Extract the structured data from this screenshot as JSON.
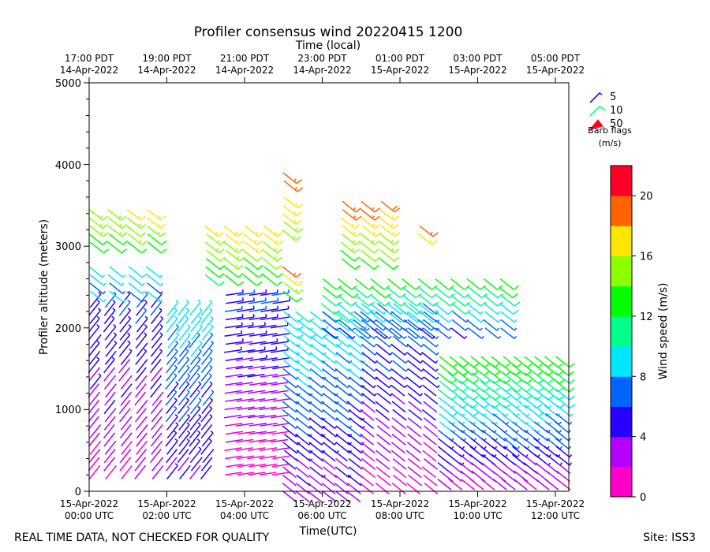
{
  "chart_data": {
    "type": "wind-barb-profile",
    "title": "Profiler consensus wind 20220415 1200",
    "top_axis_label": "Time (local)",
    "xlabel": "Time(UTC)",
    "ylabel": "Profiler altitude (meters)",
    "xlim_hours_utc": [
      0,
      12.35
    ],
    "ylim": [
      0,
      5000
    ],
    "y_ticks": [
      "0",
      "1000",
      "2000",
      "3000",
      "4000",
      "5000"
    ],
    "bottom_ticks": [
      {
        "hour": 0,
        "line1": "15-Apr-2022",
        "line2": "00:00 UTC"
      },
      {
        "hour": 2,
        "line1": "15-Apr-2022",
        "line2": "02:00 UTC"
      },
      {
        "hour": 4,
        "line1": "15-Apr-2022",
        "line2": "04:00 UTC"
      },
      {
        "hour": 6,
        "line1": "15-Apr-2022",
        "line2": "06:00 UTC"
      },
      {
        "hour": 8,
        "line1": "15-Apr-2022",
        "line2": "08:00 UTC"
      },
      {
        "hour": 10,
        "line1": "15-Apr-2022",
        "line2": "10:00 UTC"
      },
      {
        "hour": 12,
        "line1": "15-Apr-2022",
        "line2": "12:00 UTC"
      }
    ],
    "top_ticks": [
      {
        "hour": 0,
        "line1": "17:00 PDT",
        "line2": "14-Apr-2022"
      },
      {
        "hour": 2,
        "line1": "19:00 PDT",
        "line2": "14-Apr-2022"
      },
      {
        "hour": 4,
        "line1": "21:00 PDT",
        "line2": "14-Apr-2022"
      },
      {
        "hour": 6,
        "line1": "23:00 PDT",
        "line2": "14-Apr-2022"
      },
      {
        "hour": 8,
        "line1": "01:00 PDT",
        "line2": "15-Apr-2022"
      },
      {
        "hour": 10,
        "line1": "03:00 PDT",
        "line2": "15-Apr-2022"
      },
      {
        "hour": 12,
        "line1": "05:00 PDT",
        "line2": "15-Apr-2022"
      }
    ],
    "colorbar": {
      "label": "Wind speed (m/s)",
      "range": [
        0,
        22
      ],
      "tick_labels": [
        "0",
        "4",
        "8",
        "12",
        "16",
        "20"
      ],
      "colors": [
        "#ff00c8",
        "#b400ff",
        "#2800ff",
        "#0064ff",
        "#00e6ff",
        "#00ff8c",
        "#00ff00",
        "#8cff00",
        "#ffe600",
        "#ff6400",
        "#ff0028"
      ]
    },
    "legend": {
      "entries": [
        {
          "label": "5",
          "color": "#2800ff"
        },
        {
          "label": "10",
          "color": "#00ff8c"
        },
        {
          "label": "50",
          "color": "#ff0028"
        }
      ],
      "title_line1": "Barb flags",
      "title_line2": "(m/s)"
    },
    "barb_rows": [
      {
        "hour_start": 0.0,
        "hour_end": 2.0,
        "alt_min": 150,
        "alt_max": 2300,
        "step": 100,
        "speed_low": 2,
        "speed_high": 6,
        "direction": "sw",
        "columns": 5
      },
      {
        "hour_start": 2.0,
        "hour_end": 3.2,
        "alt_min": 150,
        "alt_max": 2200,
        "step": 100,
        "speed_low": 4,
        "speed_high": 9,
        "direction": "sw",
        "columns": 4
      },
      {
        "hour_start": 3.5,
        "hour_end": 5.0,
        "alt_min": 200,
        "alt_max": 2400,
        "step": 100,
        "speed_low": 1,
        "speed_high": 6,
        "direction": "w",
        "columns": 5
      },
      {
        "hour_start": 5.0,
        "hour_end": 7.0,
        "alt_min": 0,
        "alt_max": 2200,
        "step": 100,
        "speed_low": 3,
        "speed_high": 10,
        "direction": "nw",
        "columns": 6
      },
      {
        "hour_start": 7.0,
        "hour_end": 9.0,
        "alt_min": 100,
        "alt_max": 2300,
        "step": 100,
        "speed_low": 1,
        "speed_high": 8,
        "direction": "nw",
        "columns": 5
      },
      {
        "hour_start": 9.0,
        "hour_end": 12.3,
        "alt_min": 150,
        "alt_max": 1700,
        "step": 100,
        "speed_low": 2,
        "speed_high": 14,
        "direction": "nw",
        "columns": 12
      },
      {
        "hour_start": 0.0,
        "hour_end": 2.0,
        "alt_min": 2450,
        "alt_max": 2800,
        "step": 100,
        "speed_low": 8,
        "speed_high": 9,
        "direction": "nw",
        "columns": 4
      },
      {
        "hour_start": 6.0,
        "hour_end": 11.0,
        "alt_min": 2000,
        "alt_max": 2600,
        "step": 100,
        "speed_low": 6,
        "speed_high": 13,
        "direction": "nw",
        "columns": 12
      },
      {
        "hour_start": 0.0,
        "hour_end": 2.0,
        "alt_min": 3050,
        "alt_max": 3500,
        "step": 100,
        "speed_low": 13,
        "speed_high": 17,
        "direction": "nw",
        "columns": 4
      },
      {
        "hour_start": 3.0,
        "hour_end": 5.0,
        "alt_min": 2650,
        "alt_max": 3300,
        "step": 100,
        "speed_low": 12,
        "speed_high": 18,
        "direction": "nw",
        "columns": 4
      },
      {
        "hour_start": 5.0,
        "hour_end": 6.0,
        "alt_min": 2450,
        "alt_max": 2750,
        "step": 100,
        "speed_low": 13,
        "speed_high": 19,
        "direction": "nw",
        "columns": 1
      },
      {
        "hour_start": 5.0,
        "hour_end": 6.0,
        "alt_min": 3200,
        "alt_max": 3600,
        "step": 100,
        "speed_low": 15,
        "speed_high": 17,
        "direction": "nw",
        "columns": 1
      },
      {
        "hour_start": 6.5,
        "hour_end": 8.0,
        "alt_min": 2850,
        "alt_max": 3550,
        "step": 100,
        "speed_low": 13,
        "speed_high": 19,
        "direction": "nw",
        "columns": 3
      },
      {
        "hour_start": 8.5,
        "hour_end": 9.0,
        "alt_min": 3150,
        "alt_max": 3300,
        "step": 100,
        "speed_low": 17,
        "speed_high": 19,
        "direction": "nw",
        "columns": 1
      },
      {
        "hour_start": 5.0,
        "hour_end": 5.5,
        "alt_min": 3800,
        "alt_max": 3900,
        "step": 100,
        "speed_low": 19,
        "speed_high": 19,
        "direction": "nw",
        "columns": 1
      }
    ]
  },
  "footer": {
    "left_note": "REAL TIME DATA, NOT CHECKED FOR QUALITY",
    "site": "Site: ISS3"
  }
}
